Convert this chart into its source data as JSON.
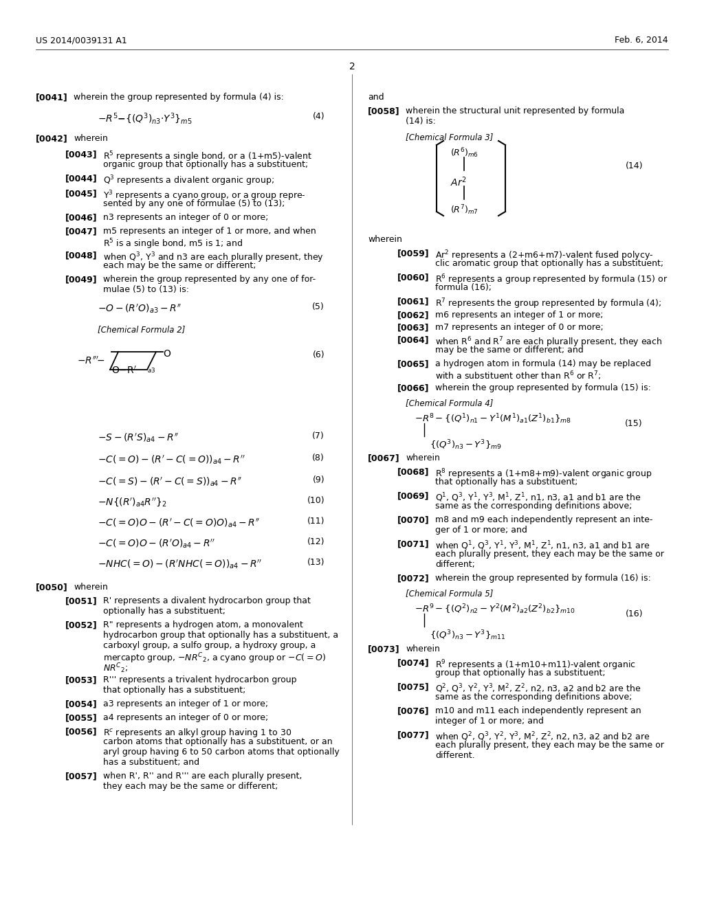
{
  "bg_color": "#ffffff",
  "header_left": "US 2014/0039131 A1",
  "header_right": "Feb. 6, 2014",
  "page_number": "2"
}
